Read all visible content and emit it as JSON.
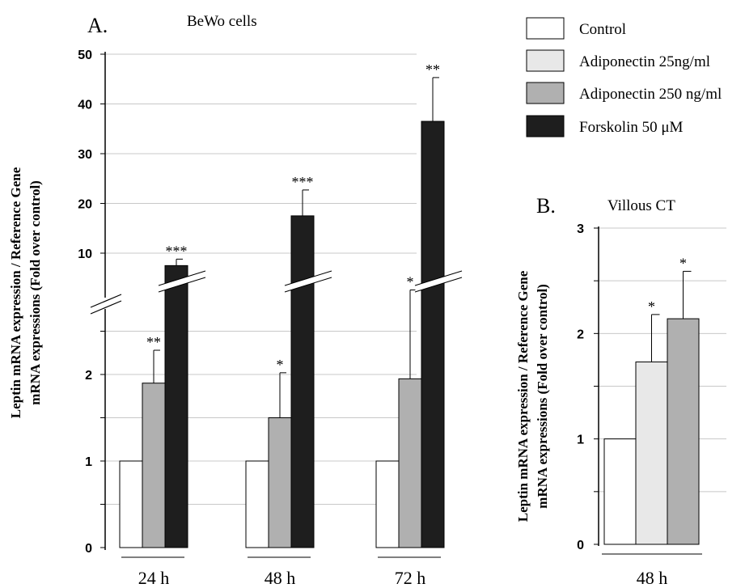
{
  "legend": [
    {
      "label": "Control",
      "color": "#ffffff"
    },
    {
      "label": "Adiponectin 25ng/ml",
      "color": "#e8e8e8"
    },
    {
      "label": "Adiponectin 250 ng/ml",
      "color": "#b0b0b0"
    },
    {
      "label": "Forskolin 50 μM",
      "color": "#1e1e1e"
    }
  ],
  "chart_data": [
    {
      "type": "bar",
      "panel_label": "A.",
      "title": "BeWo cells",
      "ylabel": "Leptin mRNA expression / Reference Gene mRNA expressions (Fold over control)",
      "categories": [
        "24 h",
        "48 h",
        "72 h"
      ],
      "broken_axis": true,
      "lower_ylim": [
        0,
        2.5
      ],
      "upper_ylim": [
        5,
        50
      ],
      "yticks_lower": [
        "0",
        "1",
        "2"
      ],
      "yticks_upper": [
        "10",
        "20",
        "30",
        "40",
        "50"
      ],
      "grid": true,
      "series": [
        {
          "name": "Control",
          "values": [
            1,
            1,
            1
          ],
          "errors": [
            0,
            0,
            0
          ],
          "sig": [
            "",
            "",
            ""
          ]
        },
        {
          "name": "Adiponectin 250 ng/ml",
          "values": [
            1.9,
            1.5,
            1.95
          ],
          "errors": [
            0.38,
            0.52,
            0.65
          ],
          "sig": [
            "**",
            "*",
            "*"
          ]
        },
        {
          "name": "Forskolin 50 μM",
          "values": [
            7.5,
            17.5,
            36.5
          ],
          "errors": [
            1.3,
            5.2,
            8.8
          ],
          "sig": [
            "***",
            "***",
            "**"
          ]
        }
      ]
    },
    {
      "type": "bar",
      "panel_label": "B.",
      "title": "Villous CT",
      "ylabel": "Leptin mRNA expression / Reference Gene mRNA expressions (Fold over control)",
      "categories": [
        "48 h"
      ],
      "ylim": [
        0,
        3
      ],
      "yticks": [
        "0",
        "1",
        "2",
        "3"
      ],
      "grid": true,
      "series": [
        {
          "name": "Control",
          "values": [
            1.0
          ],
          "errors": [
            0
          ],
          "sig": [
            ""
          ]
        },
        {
          "name": "Adiponectin 25ng/ml",
          "values": [
            1.73
          ],
          "errors": [
            0.45
          ],
          "sig": [
            "*"
          ]
        },
        {
          "name": "Adiponectin 250 ng/ml",
          "values": [
            2.14
          ],
          "errors": [
            0.45
          ],
          "sig": [
            "*"
          ]
        }
      ]
    }
  ]
}
